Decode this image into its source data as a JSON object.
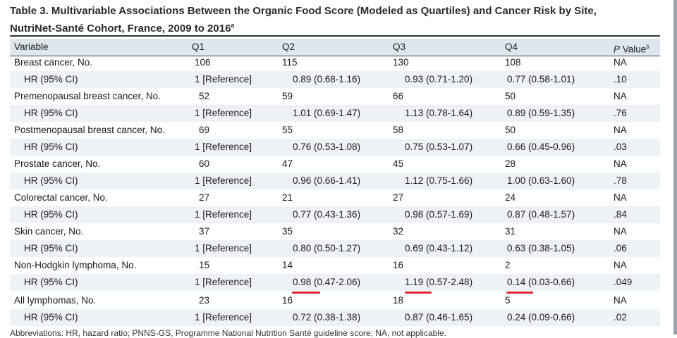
{
  "title": {
    "line1": "Table 3. Multivariable Associations Between the Organic Food Score (Modeled as Quartiles) and Cancer Risk by Site,",
    "line2": "NutriNet-Santé Cohort, France, 2009 to 2016",
    "line2_sup": "a"
  },
  "header": {
    "variable": "Variable",
    "q1": "Q1",
    "q2": "Q2",
    "q3": "Q3",
    "q4": "Q4",
    "p_italic": "P",
    "p_rest": " Value",
    "p_sup": "b"
  },
  "rows": [
    {
      "variable": "Breast cancer, No.",
      "q1": "106",
      "q2": "115",
      "q3": "130",
      "q4": "108",
      "p": "NA"
    },
    {
      "variable": "HR (95% CI)",
      "q1": "1 [Reference]",
      "q2": "0.89 (0.68-1.16)",
      "q3": "0.93 (0.71-1.20)",
      "q4": "0.77 (0.58-1.01)",
      "p": ".10"
    },
    {
      "variable": "Premenopausal breast cancer, No.",
      "q1": "52",
      "q2": "59",
      "q3": "66",
      "q4": "50",
      "p": "NA"
    },
    {
      "variable": "HR (95% CI)",
      "q1": "1 [Reference]",
      "q2": "1.01 (0.69-1.47)",
      "q3": "1.13 (0.78-1.64)",
      "q4": "0.89 (0.59-1.35)",
      "p": ".76"
    },
    {
      "variable": "Postmenopausal breast cancer, No.",
      "q1": "69",
      "q2": "55",
      "q3": "58",
      "q4": "50",
      "p": "NA"
    },
    {
      "variable": "HR (95% CI)",
      "q1": "1 [Reference]",
      "q2": "0.76 (0.53-1.08)",
      "q3": "0.75 (0.53-1.07)",
      "q4": "0.66 (0.45-0.96)",
      "p": ".03"
    },
    {
      "variable": "Prostate cancer, No.",
      "q1": "60",
      "q2": "47",
      "q3": "45",
      "q4": "28",
      "p": "NA"
    },
    {
      "variable": "HR (95% CI)",
      "q1": "1 [Reference]",
      "q2": "0.96 (0.66-1.41)",
      "q3": "1.12 (0.75-1.66)",
      "q4": "1.00 (0.63-1.60)",
      "p": ".78"
    },
    {
      "variable": "Colorectal cancer, No.",
      "q1": "27",
      "q2": "21",
      "q3": "27",
      "q4": "24",
      "p": "NA"
    },
    {
      "variable": "HR (95% CI)",
      "q1": "1 [Reference]",
      "q2": "0.77 (0.43-1.36)",
      "q3": "0.98 (0.57-1.69)",
      "q4": "0.87 (0.48-1.57)",
      "p": ".84"
    },
    {
      "variable": "Skin cancer, No.",
      "q1": "37",
      "q2": "35",
      "q3": "32",
      "q4": "31",
      "p": "NA"
    },
    {
      "variable": "HR (95% CI)",
      "q1": "1 [Reference]",
      "q2": "0.80 (0.50-1.27)",
      "q3": "0.69 (0.43-1.12)",
      "q4": "0.63 (0.38-1.05)",
      "p": ".06"
    },
    {
      "variable": "Non-Hodgkin lymphoma, No.",
      "q1": "15",
      "q2": "14",
      "q3": "16",
      "q4": "2",
      "p": "NA"
    },
    {
      "variable": "HR (95% CI)",
      "q1": "1 [Reference]",
      "q2": "0.98 (0.47-2.06)",
      "q3": "1.19 (0.57-2.48)",
      "q4": "0.14 (0.03-0.66)",
      "p": ".049"
    },
    {
      "variable": "All lymphomas, No.",
      "q1": "23",
      "q2": "16",
      "q3": "18",
      "q4": "5",
      "p": "NA"
    },
    {
      "variable": "HR (95% CI)",
      "q1": "1 [Reference]",
      "q2": "0.72 (0.38-1.38)",
      "q3": "0.87 (0.46-1.65)",
      "q4": "0.24 (0.09-0.66)",
      "p": ".02"
    }
  ],
  "footer": "Abbreviations: HR, hazard ratio; PNNS-GS, Programme National Nutrition Santé guideline score; NA, not applicable.",
  "colors": {
    "header_bg": "#dfe6ee",
    "row_shade": "#eef2f6",
    "annotation_red": "#e4232f"
  }
}
